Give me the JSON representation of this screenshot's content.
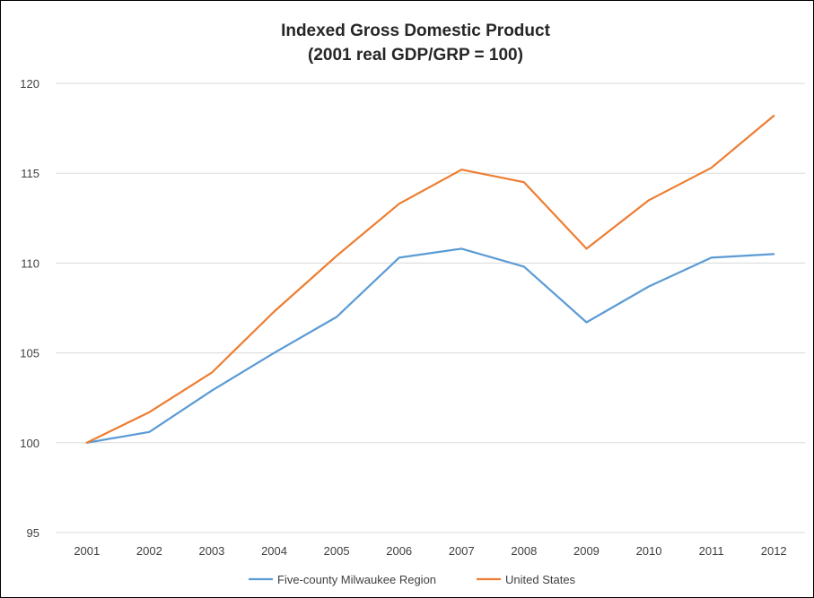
{
  "chart_data": {
    "type": "line",
    "title": "Indexed Gross Domestic Product",
    "subtitle": "(2001 real GDP/GRP = 100)",
    "xlabel": "",
    "ylabel": "",
    "categories": [
      "2001",
      "2002",
      "2003",
      "2004",
      "2005",
      "2006",
      "2007",
      "2008",
      "2009",
      "2010",
      "2011",
      "2012"
    ],
    "ylim": [
      95,
      120
    ],
    "yticks": [
      "95",
      "100",
      "105",
      "110",
      "115",
      "120"
    ],
    "grid": "horizontal",
    "legend": "bottom",
    "series": [
      {
        "name": "Five-county Milwaukee Region",
        "color": "#5b9bd5",
        "values": [
          100.0,
          100.6,
          102.9,
          105.0,
          107.0,
          110.3,
          110.8,
          109.8,
          106.7,
          108.7,
          110.3,
          110.5
        ]
      },
      {
        "name": "United States",
        "color": "#ed7d31",
        "values": [
          100.0,
          101.7,
          103.9,
          107.3,
          110.4,
          113.3,
          115.2,
          114.5,
          110.8,
          113.5,
          115.3,
          118.2
        ]
      }
    ]
  }
}
